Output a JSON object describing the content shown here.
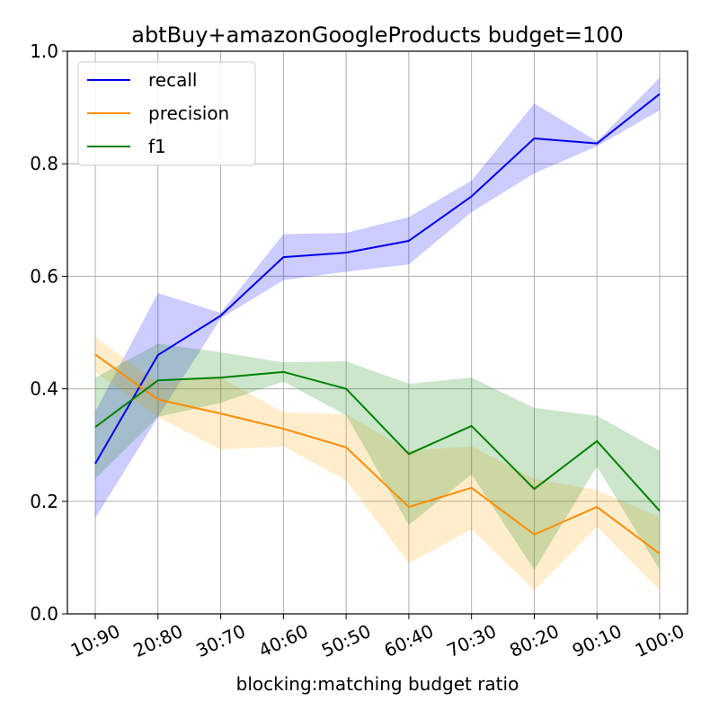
{
  "chart_data": {
    "type": "line",
    "title": "abtBuy+amazonGoogleProducts budget=100",
    "xlabel": "blocking:matching  budget ratio",
    "ylabel": "",
    "categories": [
      "10:90",
      "20:80",
      "30:70",
      "40:60",
      "50:50",
      "60:40",
      "70:30",
      "80:20",
      "90:10",
      "100:0"
    ],
    "ylim": [
      0.0,
      1.0
    ],
    "yticks": [
      "0.0",
      "0.2",
      "0.4",
      "0.6",
      "0.8",
      "1.0"
    ],
    "grid": true,
    "legend_position": "top-left",
    "series": [
      {
        "name": "recall",
        "color": "#0000ee",
        "band_color": "#0000ff",
        "values": [
          0.267,
          0.46,
          0.53,
          0.634,
          0.642,
          0.663,
          0.742,
          0.845,
          0.836,
          0.924
        ],
        "lower": [
          0.17,
          0.35,
          0.525,
          0.593,
          0.608,
          0.621,
          0.714,
          0.783,
          0.831,
          0.895
        ],
        "upper": [
          0.36,
          0.57,
          0.535,
          0.675,
          0.677,
          0.705,
          0.77,
          0.907,
          0.84,
          0.953
        ]
      },
      {
        "name": "precision",
        "color": "#ff8c00",
        "band_color": "#ffa500",
        "values": [
          0.461,
          0.381,
          0.356,
          0.329,
          0.296,
          0.19,
          0.224,
          0.141,
          0.19,
          0.107
        ],
        "lower": [
          0.43,
          0.35,
          0.292,
          0.298,
          0.237,
          0.09,
          0.15,
          0.042,
          0.155,
          0.042
        ],
        "upper": [
          0.492,
          0.41,
          0.42,
          0.358,
          0.355,
          0.29,
          0.298,
          0.24,
          0.22,
          0.172
        ]
      },
      {
        "name": "f1",
        "color": "#008000",
        "band_color": "#008000",
        "values": [
          0.332,
          0.415,
          0.42,
          0.43,
          0.4,
          0.284,
          0.334,
          0.222,
          0.307,
          0.183
        ],
        "lower": [
          0.24,
          0.35,
          0.375,
          0.413,
          0.353,
          0.158,
          0.248,
          0.078,
          0.262,
          0.078
        ],
        "upper": [
          0.42,
          0.48,
          0.465,
          0.447,
          0.449,
          0.409,
          0.42,
          0.366,
          0.352,
          0.29
        ]
      }
    ]
  }
}
